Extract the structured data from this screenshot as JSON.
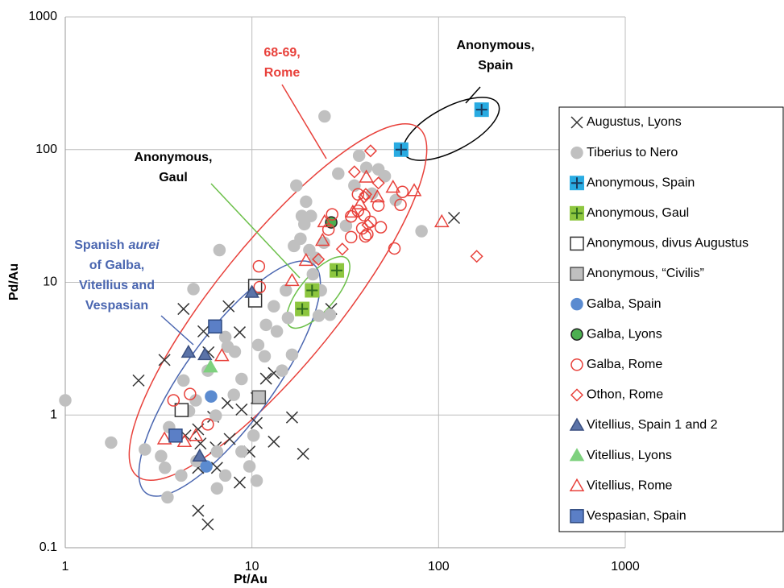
{
  "chart_data": {
    "type": "scatter",
    "x_label": "Pt/Au",
    "y_label": "Pd/Au",
    "xscale": "log",
    "yscale": "log",
    "xlim": [
      1,
      1000
    ],
    "ylim": [
      0.1,
      1000
    ],
    "xticks": [
      1,
      10,
      100,
      1000
    ],
    "yticks": [
      0.1,
      1,
      10,
      100,
      1000
    ],
    "grid": true,
    "legend": "right",
    "annotations": [
      {
        "color": "#000000",
        "lines": [
          [
            "Anonymous,"
          ],
          [
            "Spain"
          ]
        ]
      },
      {
        "color": "#e8413b",
        "lines": [
          [
            "68-69,"
          ],
          [
            "Rome"
          ]
        ]
      },
      {
        "color": "#000000",
        "lines": [
          [
            "Anonymous,"
          ],
          [
            "Gaul"
          ]
        ]
      },
      {
        "color": "#4a66b0",
        "lines": [
          [
            "Spanish",
            {
              "text": "aurei",
              "italic": true
            }
          ],
          [
            "of Galba,"
          ],
          [
            "Vitellius and"
          ],
          [
            "Vespasian"
          ]
        ]
      }
    ],
    "series": [
      {
        "name": "Augustus, Lyons",
        "marker": "x",
        "color": "#333333",
        "fill": "none",
        "x": [
          121,
          26.6,
          4.3,
          3.4,
          2.47,
          5.5,
          8.6,
          5.85,
          7.4,
          8.8,
          5.3,
          5.15,
          6.5,
          5.15,
          5.8,
          8.6,
          11.9,
          13.1,
          13.1,
          16.4,
          18.8,
          10.6,
          9.7,
          7.6,
          6.4,
          4.4,
          10.6,
          7.5,
          5.15,
          6.2
        ],
        "y": [
          30.6,
          6.3,
          6.3,
          2.6,
          1.82,
          4.27,
          4.2,
          2.97,
          1.23,
          1.1,
          0.61,
          0.4,
          0.4,
          0.19,
          0.15,
          0.31,
          1.88,
          2.07,
          0.63,
          0.96,
          0.51,
          0.87,
          0.53,
          0.66,
          0.57,
          0.7,
          1.34,
          6.6,
          0.78,
          0.97
        ]
      },
      {
        "name": "Tiberius to Nero",
        "marker": "circle",
        "color": "#c0c0c0",
        "fill": "#c0c0c0",
        "x": [
          1.0,
          1.76,
          2.67,
          3.26,
          3.53,
          3.6,
          4.3,
          4.6,
          5.0,
          4.86,
          5.05,
          6.5,
          6.5,
          7.2,
          6.7,
          7.2,
          7.4,
          8.1,
          8.8,
          8.8,
          9.7,
          10.6,
          10.2,
          11.7,
          11.9,
          13.1,
          13.6,
          15.2,
          15.6,
          16.8,
          17.3,
          18.2,
          19.1,
          19.5,
          20.7,
          21.9,
          22.8,
          24.5,
          24.3,
          29.0,
          31.9,
          35.4,
          37.5,
          41,
          44,
          47.6,
          51.5,
          59,
          81,
          23.4,
          21.2,
          14.5,
          16.4,
          10.8,
          5.8,
          8.0,
          3.42,
          4.18,
          6.4,
          20.3,
          26.2,
          18.5
        ],
        "y": [
          1.29,
          0.62,
          0.55,
          0.49,
          0.24,
          0.81,
          1.82,
          1.07,
          1.29,
          8.9,
          0.45,
          0.53,
          0.28,
          0.35,
          17.5,
          3.87,
          3.28,
          3.0,
          1.87,
          0.53,
          0.41,
          0.32,
          0.7,
          2.77,
          4.78,
          6.6,
          4.27,
          8.7,
          5.4,
          18.8,
          53.6,
          21.3,
          27.4,
          40.5,
          31.6,
          15.3,
          5.6,
          178,
          19.9,
          66,
          26.7,
          53.6,
          90,
          73,
          46.6,
          71,
          63,
          41.7,
          24.3,
          8.7,
          11.5,
          2.16,
          2.85,
          3.37,
          2.16,
          1.42,
          0.4,
          0.35,
          0.99,
          17.5,
          5.7,
          31.6
        ]
      },
      {
        "name": "Anonymous, Spain",
        "marker": "square-plus",
        "color": "#1a3a5c",
        "fill": "#29abe2",
        "x": [
          170,
          63
        ],
        "y": [
          200,
          100
        ]
      },
      {
        "name": "Anonymous, Gaul",
        "marker": "square-plus",
        "color": "#2e6b1f",
        "fill": "#8dc63f",
        "x": [
          28.5,
          21,
          18.6
        ],
        "y": [
          12.3,
          8.7,
          6.3
        ]
      },
      {
        "name": "Anonymous, divus Augustus",
        "marker": "square",
        "color": "#333333",
        "fill": "#ffffff",
        "x": [
          4.2,
          10.4,
          10.4
        ],
        "y": [
          1.09,
          9.4,
          7.3
        ]
      },
      {
        "name": "Anonymous, “Civilis”",
        "marker": "square",
        "color": "#555555",
        "fill": "#bfbfbf",
        "x": [
          10.9
        ],
        "y": [
          1.36
        ]
      },
      {
        "name": "Galba, Spain",
        "marker": "circle",
        "color": "#5b8bd0",
        "fill": "#5b8bd0",
        "x": [
          6.04,
          5.7
        ],
        "y": [
          1.38,
          0.41
        ]
      },
      {
        "name": "Galba, Lyons",
        "marker": "circle",
        "color": "#222222",
        "fill": "#4caf50",
        "x": [
          26.6
        ],
        "y": [
          28.3
        ]
      },
      {
        "name": "Galba, Rome",
        "marker": "circle",
        "color": "#e8413b",
        "fill": "none",
        "x": [
          3.8,
          4.66,
          5.8,
          11.0,
          10.9,
          25.7,
          26.9,
          34,
          37,
          39,
          40,
          41.5,
          40.5,
          43.2,
          47.6,
          62.5,
          64,
          37,
          34,
          49,
          58
        ],
        "y": [
          1.29,
          1.44,
          0.85,
          9.2,
          13.2,
          25,
          32.5,
          21.9,
          34.6,
          25.5,
          32,
          23,
          22.2,
          28.6,
          37.9,
          38.4,
          48,
          46,
          31.4,
          26,
          18
        ]
      },
      {
        "name": "Othon, Rome",
        "marker": "diamond",
        "color": "#e8413b",
        "fill": "none",
        "x": [
          43.2,
          35.4,
          40.7,
          47.6,
          30.5,
          41.8,
          160,
          22.7,
          40
        ],
        "y": [
          97.8,
          68,
          46,
          56,
          17.8,
          27,
          15.7,
          14.9,
          44
        ]
      },
      {
        "name": "Vitellius, Spain 1 and 2",
        "marker": "triangle",
        "color": "#3a4f80",
        "fill": "#5b73a8",
        "x": [
          4.57,
          5.6,
          10,
          5.25
        ],
        "y": [
          2.97,
          2.85,
          8.4,
          0.49
        ]
      },
      {
        "name": "Vitellius, Lyons",
        "marker": "triangle",
        "color": "#7ed17e",
        "fill": "#7ed17e",
        "x": [
          6.0
        ],
        "y": [
          2.3
        ]
      },
      {
        "name": "Vitellius, Rome",
        "marker": "triangle",
        "color": "#e8413b",
        "fill": "none",
        "x": [
          3.4,
          4.35,
          5.0,
          6.9,
          16.4,
          19.5,
          23.9,
          24.5,
          34.7,
          38.0,
          41,
          47,
          57,
          74,
          104
        ],
        "y": [
          0.66,
          0.63,
          0.7,
          2.8,
          10.3,
          14.6,
          20.7,
          28.6,
          33.8,
          39,
          62,
          44,
          52,
          49,
          28.6
        ]
      },
      {
        "name": "Vespasian, Spain",
        "marker": "square",
        "color": "#2f4a80",
        "fill": "#5b7fc6",
        "x": [
          6.35,
          3.9
        ],
        "y": [
          4.65,
          0.7
        ]
      }
    ]
  }
}
